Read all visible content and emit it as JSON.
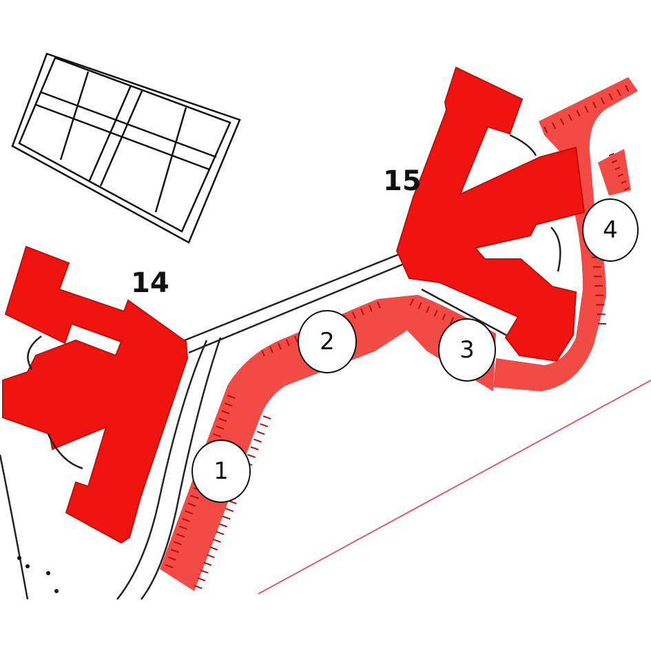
{
  "map": {
    "buildings": [
      {
        "id": "building-14",
        "label": "14"
      },
      {
        "id": "building-15",
        "label": "15"
      }
    ],
    "markers": [
      {
        "id": "marker-1",
        "label": "1"
      },
      {
        "id": "marker-2",
        "label": "2"
      },
      {
        "id": "marker-3",
        "label": "3"
      },
      {
        "id": "marker-4",
        "label": "4"
      }
    ],
    "colors": {
      "building": "#ef1410",
      "parking": "#f24a44",
      "outline": "#111111",
      "boundary": "#e05a6a"
    }
  }
}
